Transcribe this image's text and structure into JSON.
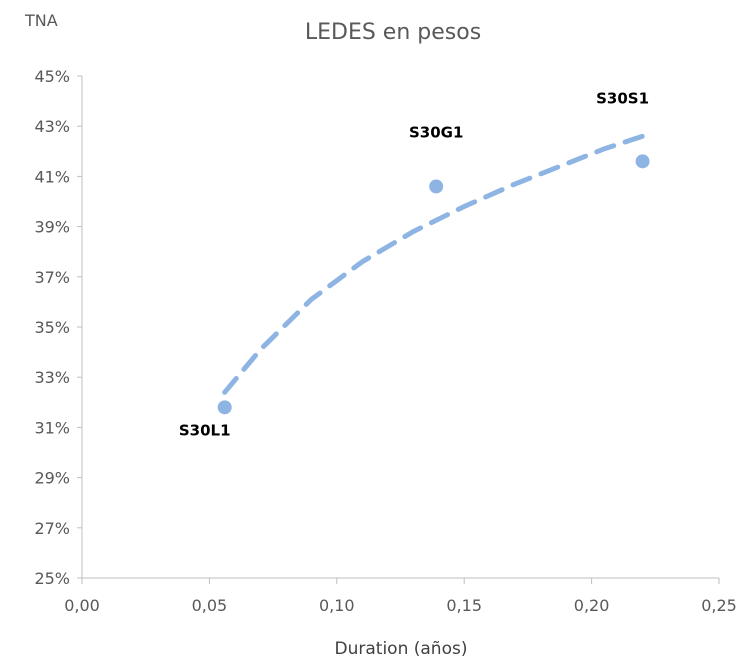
{
  "chart_data": {
    "type": "scatter",
    "title": "LEDES en pesos",
    "xlabel": "Duration (años)",
    "ylabel": "TNA",
    "xlim": [
      0,
      0.25
    ],
    "ylim": [
      25,
      45
    ],
    "x_ticks": [
      "0,00",
      "0,05",
      "0,10",
      "0,15",
      "0,20",
      "0,25"
    ],
    "y_ticks": [
      "25%",
      "27%",
      "29%",
      "31%",
      "33%",
      "35%",
      "37%",
      "39%",
      "41%",
      "43%",
      "45%"
    ],
    "grid": false,
    "legend": "none",
    "series": [
      {
        "type": "scatter",
        "color": "#8eb4e3",
        "points": [
          {
            "x": 0.056,
            "y": 31.8,
            "label": "S30L1"
          },
          {
            "x": 0.139,
            "y": 40.6,
            "label": "S30G1"
          },
          {
            "x": 0.22,
            "y": 41.6,
            "label": "S30S1"
          }
        ]
      },
      {
        "type": "trendline",
        "style": "dashed",
        "color": "#8eb4e3",
        "points": [
          {
            "x": 0.056,
            "y": 32.4
          },
          {
            "x": 0.07,
            "y": 34.1
          },
          {
            "x": 0.09,
            "y": 36.1
          },
          {
            "x": 0.11,
            "y": 37.6
          },
          {
            "x": 0.13,
            "y": 38.8
          },
          {
            "x": 0.15,
            "y": 39.8
          },
          {
            "x": 0.17,
            "y": 40.7
          },
          {
            "x": 0.19,
            "y": 41.5
          },
          {
            "x": 0.205,
            "y": 42.1
          },
          {
            "x": 0.22,
            "y": 42.6
          }
        ]
      }
    ]
  }
}
